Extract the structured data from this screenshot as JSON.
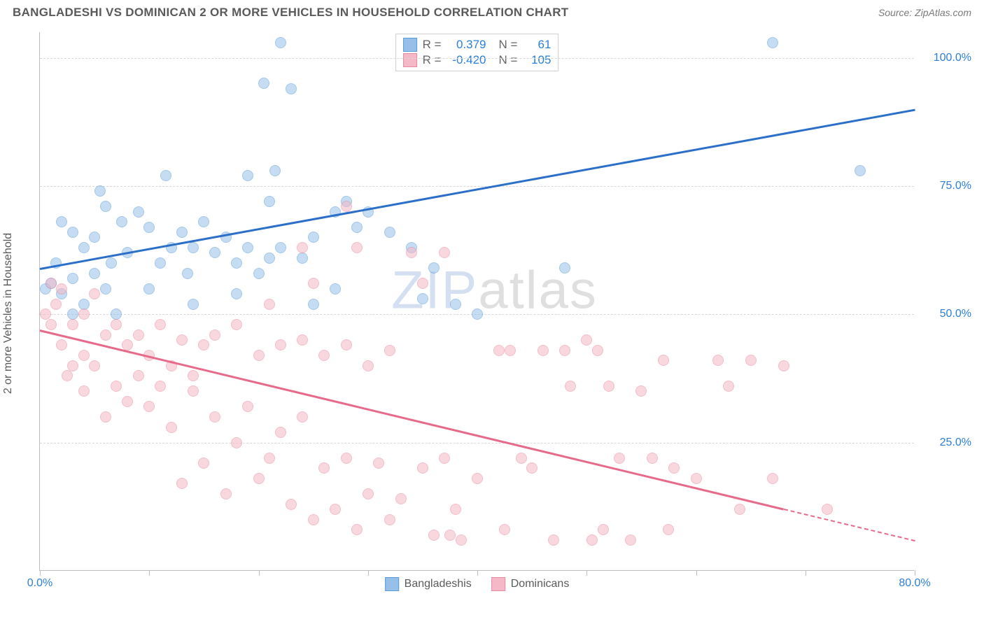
{
  "header": {
    "title": "BANGLADESHI VS DOMINICAN 2 OR MORE VEHICLES IN HOUSEHOLD CORRELATION CHART",
    "source": "Source: ZipAtlas.com"
  },
  "chart": {
    "type": "scatter",
    "ylabel": "2 or more Vehicles in Household",
    "xlim": [
      0,
      80
    ],
    "ylim": [
      0,
      105
    ],
    "ytick_values": [
      25,
      50,
      75,
      100
    ],
    "ytick_labels": [
      "25.0%",
      "50.0%",
      "75.0%",
      "100.0%"
    ],
    "xtick_values": [
      0,
      10,
      20,
      30,
      40,
      50,
      60,
      70,
      80
    ],
    "xtick_main_labels": {
      "0": "0.0%",
      "80": "80.0%"
    },
    "background_color": "#ffffff",
    "grid_color": "#d8d8d8",
    "axis_color": "#bdbdbd",
    "tick_label_color": "#2b7fd9",
    "marker_size": 16,
    "marker_opacity": 0.55,
    "series": [
      {
        "name": "Bangladeshis",
        "color_fill": "#96c0ea",
        "color_stroke": "#5a9bd8",
        "r": "0.379",
        "n": "61",
        "trend": {
          "x1": 0,
          "y1": 59,
          "x2": 80,
          "y2": 90,
          "color": "#2b6fc9",
          "dashed_from": null
        },
        "points": [
          [
            22,
            103
          ],
          [
            20.5,
            95
          ],
          [
            23,
            94
          ],
          [
            67,
            103
          ],
          [
            75,
            78
          ],
          [
            5.5,
            74
          ],
          [
            11.5,
            77
          ],
          [
            19,
            77
          ],
          [
            21.5,
            78
          ],
          [
            21,
            72
          ],
          [
            2,
            68
          ],
          [
            3,
            66
          ],
          [
            4,
            63
          ],
          [
            5,
            65
          ],
          [
            6,
            71
          ],
          [
            6.5,
            60
          ],
          [
            7.5,
            68
          ],
          [
            8,
            62
          ],
          [
            9,
            70
          ],
          [
            10,
            67
          ],
          [
            11,
            60
          ],
          [
            12,
            63
          ],
          [
            13,
            66
          ],
          [
            13.5,
            58
          ],
          [
            14,
            63
          ],
          [
            15,
            68
          ],
          [
            16,
            62
          ],
          [
            17,
            65
          ],
          [
            18,
            60
          ],
          [
            19,
            63
          ],
          [
            20,
            58
          ],
          [
            21,
            61
          ],
          [
            22,
            63
          ],
          [
            24,
            61
          ],
          [
            25,
            65
          ],
          [
            27,
            70
          ],
          [
            28,
            72
          ],
          [
            29,
            67
          ],
          [
            30,
            70
          ],
          [
            32,
            66
          ],
          [
            1,
            56
          ],
          [
            2,
            54
          ],
          [
            3,
            57
          ],
          [
            4,
            52
          ],
          [
            5,
            58
          ],
          [
            0.5,
            55
          ],
          [
            1.5,
            60
          ],
          [
            6,
            55
          ],
          [
            34,
            63
          ],
          [
            35,
            53
          ],
          [
            36,
            59
          ],
          [
            38,
            52
          ],
          [
            40,
            50
          ],
          [
            25,
            52
          ],
          [
            27,
            55
          ],
          [
            14,
            52
          ],
          [
            18,
            54
          ],
          [
            48,
            59
          ],
          [
            7,
            50
          ],
          [
            3,
            50
          ],
          [
            10,
            55
          ]
        ]
      },
      {
        "name": "Dominicans",
        "color_fill": "#f4b8c6",
        "color_stroke": "#e88aa0",
        "r": "-0.420",
        "n": "105",
        "trend": {
          "x1": 0,
          "y1": 47,
          "x2": 80,
          "y2": 6,
          "color": "#e76a8a",
          "dashed_from": 68
        },
        "points": [
          [
            28,
            71
          ],
          [
            24,
            63
          ],
          [
            29,
            63
          ],
          [
            34,
            62
          ],
          [
            37,
            62
          ],
          [
            25,
            56
          ],
          [
            1,
            56
          ],
          [
            1.5,
            52
          ],
          [
            2,
            55
          ],
          [
            3,
            48
          ],
          [
            4,
            50
          ],
          [
            5,
            54
          ],
          [
            6,
            46
          ],
          [
            7,
            48
          ],
          [
            8,
            44
          ],
          [
            9,
            46
          ],
          [
            10,
            42
          ],
          [
            11,
            48
          ],
          [
            12,
            40
          ],
          [
            13,
            45
          ],
          [
            14,
            38
          ],
          [
            15,
            44
          ],
          [
            16,
            46
          ],
          [
            18,
            48
          ],
          [
            20,
            42
          ],
          [
            22,
            44
          ],
          [
            24,
            45
          ],
          [
            26,
            42
          ],
          [
            28,
            44
          ],
          [
            30,
            40
          ],
          [
            32,
            43
          ],
          [
            35,
            56
          ],
          [
            21,
            52
          ],
          [
            4,
            35
          ],
          [
            6,
            30
          ],
          [
            8,
            33
          ],
          [
            10,
            32
          ],
          [
            12,
            28
          ],
          [
            13,
            17
          ],
          [
            14,
            35
          ],
          [
            15,
            21
          ],
          [
            16,
            30
          ],
          [
            17,
            15
          ],
          [
            18,
            25
          ],
          [
            19,
            32
          ],
          [
            20,
            18
          ],
          [
            21,
            22
          ],
          [
            22,
            27
          ],
          [
            23,
            13
          ],
          [
            24,
            30
          ],
          [
            25,
            10
          ],
          [
            26,
            20
          ],
          [
            27,
            12
          ],
          [
            28,
            22
          ],
          [
            29,
            8
          ],
          [
            30,
            15
          ],
          [
            31,
            21
          ],
          [
            32,
            10
          ],
          [
            33,
            14
          ],
          [
            35,
            20
          ],
          [
            36,
            7
          ],
          [
            37,
            22
          ],
          [
            37.5,
            7
          ],
          [
            38,
            12
          ],
          [
            38.5,
            6
          ],
          [
            40,
            18
          ],
          [
            42,
            43
          ],
          [
            42.5,
            8
          ],
          [
            43,
            43
          ],
          [
            44,
            22
          ],
          [
            45,
            20
          ],
          [
            46,
            43
          ],
          [
            47,
            6
          ],
          [
            48,
            43
          ],
          [
            48.5,
            36
          ],
          [
            50,
            45
          ],
          [
            50.5,
            6
          ],
          [
            51,
            43
          ],
          [
            51.5,
            8
          ],
          [
            52,
            36
          ],
          [
            53,
            22
          ],
          [
            54,
            6
          ],
          [
            55,
            35
          ],
          [
            56,
            22
          ],
          [
            57,
            41
          ],
          [
            57.5,
            8
          ],
          [
            58,
            20
          ],
          [
            60,
            18
          ],
          [
            62,
            41
          ],
          [
            63,
            36
          ],
          [
            64,
            12
          ],
          [
            65,
            41
          ],
          [
            67,
            18
          ],
          [
            68,
            40
          ],
          [
            72,
            12
          ],
          [
            4,
            42
          ],
          [
            5,
            40
          ],
          [
            2,
            44
          ],
          [
            3,
            40
          ],
          [
            7,
            36
          ],
          [
            9,
            38
          ],
          [
            11,
            36
          ],
          [
            2.5,
            38
          ],
          [
            1,
            48
          ],
          [
            0.5,
            50
          ]
        ]
      }
    ],
    "legend_stats": {
      "rows": [
        {
          "swatch_fill": "#96c0ea",
          "swatch_stroke": "#5a9bd8",
          "r_label": "R =",
          "r_val": "0.379",
          "n_label": "N =",
          "n_val": "61"
        },
        {
          "swatch_fill": "#f4b8c6",
          "swatch_stroke": "#e88aa0",
          "r_label": "R =",
          "r_val": "-0.420",
          "n_label": "N =",
          "n_val": "105"
        }
      ]
    },
    "legend_bottom": [
      {
        "swatch_fill": "#96c0ea",
        "swatch_stroke": "#5a9bd8",
        "label": "Bangladeshis"
      },
      {
        "swatch_fill": "#f4b8c6",
        "swatch_stroke": "#e88aa0",
        "label": "Dominicans"
      }
    ],
    "watermark": {
      "part1": "ZIP",
      "part2": "atlas"
    }
  }
}
